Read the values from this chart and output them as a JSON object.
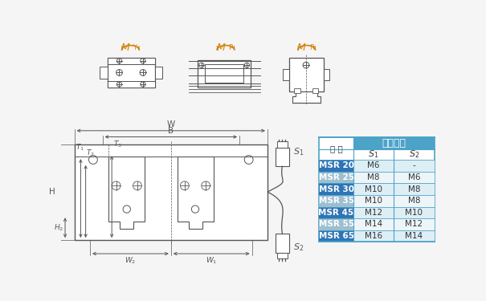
{
  "bg_color": "#f5f5f5",
  "table_header_color": "#4ca3c8",
  "table_row_blue": "#2e75b6",
  "table_row_gray": "#9dbfcf",
  "table_text_white": "#ffffff",
  "table_text_dark": "#333333",
  "table_border_color": "#4ca3c8",
  "drawing_color": "#555555",
  "moment_color": "#d4820a",
  "label_color": "#555555",
  "螺栓规格": "螺栓规格",
  "型号": "型 号",
  "rows": [
    {
      "model": "MSR 20",
      "s1": "M6",
      "s2": "-",
      "highlight": "blue"
    },
    {
      "model": "MSR 25",
      "s1": "M8",
      "s2": "M6",
      "highlight": "gray"
    },
    {
      "model": "MSR 30",
      "s1": "M10",
      "s2": "M8",
      "highlight": "blue"
    },
    {
      "model": "MSR 35",
      "s1": "M10",
      "s2": "M8",
      "highlight": "gray"
    },
    {
      "model": "MSR 45",
      "s1": "M12",
      "s2": "M10",
      "highlight": "blue"
    },
    {
      "model": "MSR 55",
      "s1": "M14",
      "s2": "M12",
      "highlight": "gray"
    },
    {
      "model": "MSR 65",
      "s1": "M16",
      "s2": "M14",
      "highlight": "blue"
    }
  ]
}
